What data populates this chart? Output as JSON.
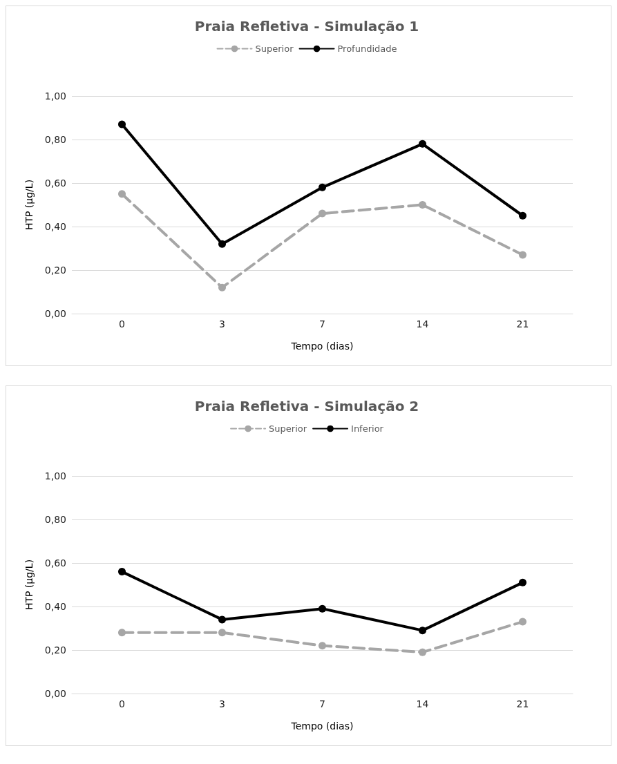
{
  "chart_data": [
    {
      "type": "line",
      "title": "Praia Refletiva - Simulação 1",
      "xlabel": "Tempo (dias)",
      "ylabel": "HTP (µg/L)",
      "categories": [
        "0",
        "3",
        "7",
        "14",
        "21"
      ],
      "series": [
        {
          "name": "Superior",
          "color": "#a6a6a6",
          "line_style": "dashed",
          "values": [
            0.55,
            0.12,
            0.46,
            0.5,
            0.27
          ]
        },
        {
          "name": "Profundidade",
          "color": "#000000",
          "line_style": "solid",
          "values": [
            0.87,
            0.32,
            0.58,
            0.78,
            0.45
          ]
        }
      ],
      "ylim": [
        0,
        1
      ],
      "yticks": [
        {
          "value": 0,
          "label": "0,00"
        },
        {
          "value": 0.2,
          "label": "0,20"
        },
        {
          "value": 0.4,
          "label": "0,40"
        },
        {
          "value": 0.6,
          "label": "0,60"
        },
        {
          "value": 0.8,
          "label": "0,80"
        },
        {
          "value": 1,
          "label": "1,00"
        }
      ],
      "grid": "y",
      "legend": "top",
      "marker": "circle"
    },
    {
      "type": "line",
      "title": "Praia Refletiva - Simulação 2",
      "xlabel": "Tempo (dias)",
      "ylabel": "HTP (µg/L)",
      "categories": [
        "0",
        "3",
        "7",
        "14",
        "21"
      ],
      "series": [
        {
          "name": "Superior",
          "color": "#a6a6a6",
          "line_style": "dashed",
          "values": [
            0.28,
            0.28,
            0.22,
            0.19,
            0.33
          ]
        },
        {
          "name": "Inferior",
          "color": "#000000",
          "line_style": "solid",
          "values": [
            0.56,
            0.34,
            0.39,
            0.29,
            0.51
          ]
        }
      ],
      "ylim": [
        0,
        1
      ],
      "yticks": [
        {
          "value": 0,
          "label": "0,00"
        },
        {
          "value": 0.2,
          "label": "0,20"
        },
        {
          "value": 0.4,
          "label": "0,40"
        },
        {
          "value": 0.6,
          "label": "0,60"
        },
        {
          "value": 0.8,
          "label": "0,80"
        },
        {
          "value": 1,
          "label": "1,00"
        }
      ],
      "grid": "y",
      "legend": "top",
      "marker": "circle"
    }
  ]
}
